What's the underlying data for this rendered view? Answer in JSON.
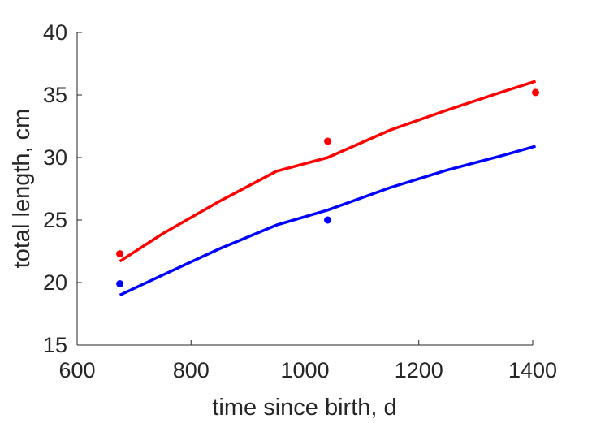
{
  "chart_data": {
    "type": "scatter",
    "xlabel": "time since birth, d",
    "ylabel": "total length, cm",
    "xlim": [
      600,
      1400
    ],
    "ylim": [
      15,
      40
    ],
    "x_ticks": [
      600,
      800,
      1000,
      1200,
      1400
    ],
    "y_ticks": [
      15,
      20,
      25,
      30,
      35,
      40
    ],
    "grid": false,
    "series": [
      {
        "kind": "points",
        "color": "#ff0000",
        "x": [
          675,
          1040,
          1405
        ],
        "y": [
          22.3,
          31.3,
          35.2
        ]
      },
      {
        "kind": "points",
        "color": "#0000ff",
        "x": [
          675,
          1040
        ],
        "y": [
          19.9,
          25.0
        ]
      },
      {
        "kind": "line",
        "color": "#ff0000",
        "x": [
          675,
          750,
          850,
          950,
          1040,
          1150,
          1250,
          1350,
          1405
        ],
        "y": [
          21.7,
          23.9,
          26.5,
          28.9,
          30.0,
          32.2,
          33.8,
          35.3,
          36.1
        ]
      },
      {
        "kind": "line",
        "color": "#0000ff",
        "x": [
          675,
          750,
          850,
          950,
          1040,
          1150,
          1250,
          1350,
          1405
        ],
        "y": [
          19.0,
          20.6,
          22.7,
          24.6,
          25.8,
          27.6,
          29.0,
          30.2,
          30.9
        ]
      }
    ]
  }
}
